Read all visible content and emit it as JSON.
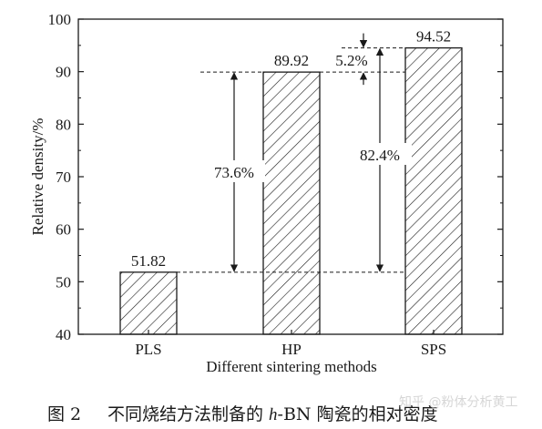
{
  "chart_data": {
    "type": "bar",
    "categories": [
      "PLS",
      "HP",
      "SPS"
    ],
    "values": [
      51.82,
      89.92,
      94.52
    ],
    "value_labels": [
      "51.82",
      "89.92",
      "94.52"
    ],
    "xlabel": "Different sintering methods",
    "ylabel": "Relative density/%",
    "ylim": [
      40,
      100
    ],
    "yticks": [
      40,
      50,
      60,
      70,
      80,
      90,
      100
    ],
    "grid": false,
    "bar_fill": "diagonal-hatch",
    "annotations": [
      {
        "text": "73.6%",
        "from": 51.82,
        "to": 89.92,
        "at": "HP"
      },
      {
        "text": "82.4%",
        "from": 51.82,
        "to": 94.52,
        "at": "SPS"
      },
      {
        "text": "5.2%",
        "from": 89.92,
        "to": 94.52,
        "at": "SPS"
      }
    ]
  },
  "caption": {
    "number": "图 2",
    "prefix": "不同烧结方法制备的 ",
    "italic": "h",
    "suffix": "-BN 陶瓷的相对密度"
  },
  "watermark": "知乎 @粉体分析黄工",
  "colors": {
    "ink": "#1a1a1a",
    "background": "#ffffff"
  }
}
